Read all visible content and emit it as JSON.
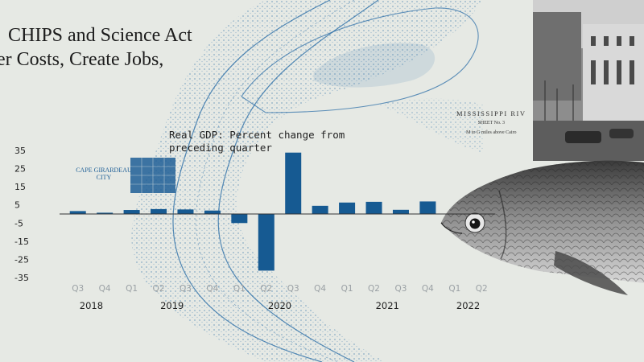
{
  "headline": {
    "line1": "CHIPS and Science Act",
    "line2": "er Costs, Create Jobs,"
  },
  "map": {
    "label_cape": "CAPE GIRARDEAU CITY",
    "sheet_title": "MISSISSIPPI RIV",
    "sheet_no": "SHEET No. 3",
    "sheet_note": "M to G miles above Cairo"
  },
  "colors": {
    "bar": "#165a92",
    "map_ink": "#2d6fa8",
    "background": "#e6e9e4"
  },
  "chart_data": {
    "type": "bar",
    "title": "Real GDP: Percent change from preceding quarter",
    "y_ticks": [
      35,
      25,
      15,
      5,
      -5,
      -15,
      -25,
      -35
    ],
    "ylim": [
      -35,
      35
    ],
    "categories": [
      "Q3",
      "Q4",
      "Q1",
      "Q2",
      "Q3",
      "Q4",
      "Q1",
      "Q2",
      "Q3",
      "Q4",
      "Q1",
      "Q2",
      "Q3",
      "Q4",
      "Q1",
      "Q2"
    ],
    "values": [
      1.6,
      0.7,
      2.2,
      2.7,
      2.5,
      1.9,
      -5.0,
      -31.2,
      33.8,
      4.5,
      6.3,
      6.7,
      2.3,
      6.9,
      null,
      null
    ],
    "years": [
      {
        "label": "2018",
        "span": [
          0,
          1
        ]
      },
      {
        "label": "2019",
        "span": [
          2,
          5
        ]
      },
      {
        "label": "2020",
        "span": [
          6,
          9
        ]
      },
      {
        "label": "2021",
        "span": [
          10,
          13
        ]
      },
      {
        "label": "2022",
        "span": [
          14,
          15
        ]
      }
    ],
    "grid": false,
    "legend": "none"
  }
}
